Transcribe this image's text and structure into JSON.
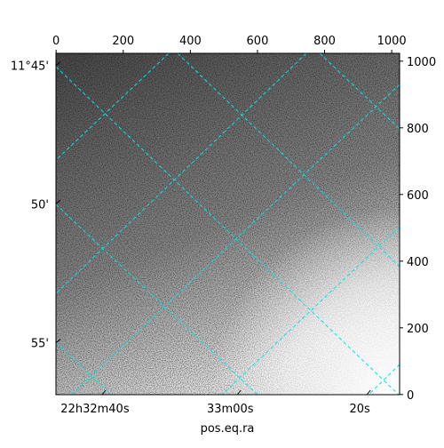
{
  "chart_data": {
    "type": "image",
    "xlabel": "pos.eq.ra",
    "xlim": [
      -0.5,
      1023.5
    ],
    "ylim": [
      -0.5,
      1023.5
    ],
    "xticks": [
      0,
      200,
      400,
      600,
      800,
      1000
    ],
    "yticks": [
      0,
      200,
      400,
      600,
      800,
      1000
    ],
    "world_yticks": [
      {
        "value": 987,
        "label": "11°45'"
      },
      {
        "value": 572,
        "label": "50'"
      },
      {
        "value": 155,
        "label": "55'"
      }
    ],
    "world_xticks": [
      {
        "value": 137,
        "label": "22h32m40s"
      },
      {
        "value": 540,
        "label": "33m00s"
      },
      {
        "value": 926,
        "label": "20s"
      }
    ],
    "grid_color": "#00e5e5"
  }
}
